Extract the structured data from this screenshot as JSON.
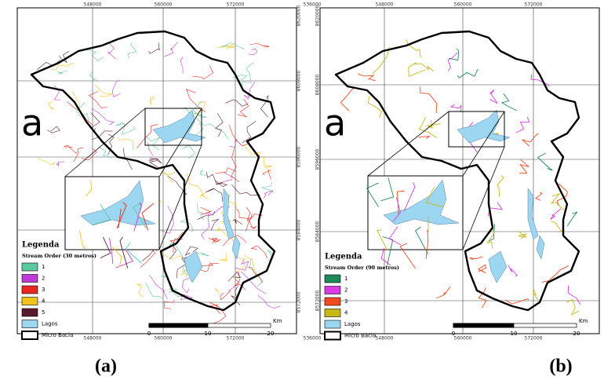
{
  "panels": [
    {
      "letter": "a",
      "caption": "(a)",
      "top_labels": [
        "548000",
        "560000",
        "572000"
      ],
      "bottom_labels": [
        "548000",
        "560000",
        "572000"
      ],
      "side_labels": [
        "8620000",
        "8608000",
        "8596000",
        "8584000",
        "8572000"
      ],
      "legend": {
        "title": "Legenda",
        "subtitle": "Stream Order (30 metros)",
        "items": [
          {
            "label": "1",
            "color": "#5cc9a0"
          },
          {
            "label": "2",
            "color": "#c03ad8"
          },
          {
            "label": "3",
            "color": "#e8281e"
          },
          {
            "label": "4",
            "color": "#f2c21a"
          },
          {
            "label": "5",
            "color": "#5a1a2c"
          },
          {
            "label": "Lagos",
            "color": "#9dd6f0"
          },
          {
            "label": "Micro Bacia",
            "color": "#ffffff"
          }
        ]
      },
      "scale": {
        "labels": [
          "0",
          "10",
          "20"
        ],
        "unit": "Km"
      }
    },
    {
      "letter": "a",
      "caption": "(b)",
      "top_labels": [
        "536000",
        "548000",
        "560000",
        "572000"
      ],
      "bottom_labels": [
        "536000",
        "548000",
        "560000",
        "572000"
      ],
      "side_labels": [
        "8620000",
        "8608000",
        "8596000",
        "8584000",
        "8572000"
      ],
      "legend": {
        "title": "Legenda",
        "subtitle": "Stream Order (90 metros)",
        "items": [
          {
            "label": "1",
            "color": "#1e8a5a"
          },
          {
            "label": "2",
            "color": "#d83ae0"
          },
          {
            "label": "3",
            "color": "#f04a1e"
          },
          {
            "label": "4",
            "color": "#c8b814"
          },
          {
            "label": "Lagos",
            "color": "#9dd6f0"
          },
          {
            "label": "Micro Bacia",
            "color": "#ffffff"
          }
        ]
      },
      "scale": {
        "labels": [
          "0",
          "10",
          "20"
        ],
        "unit": "Km"
      }
    }
  ]
}
